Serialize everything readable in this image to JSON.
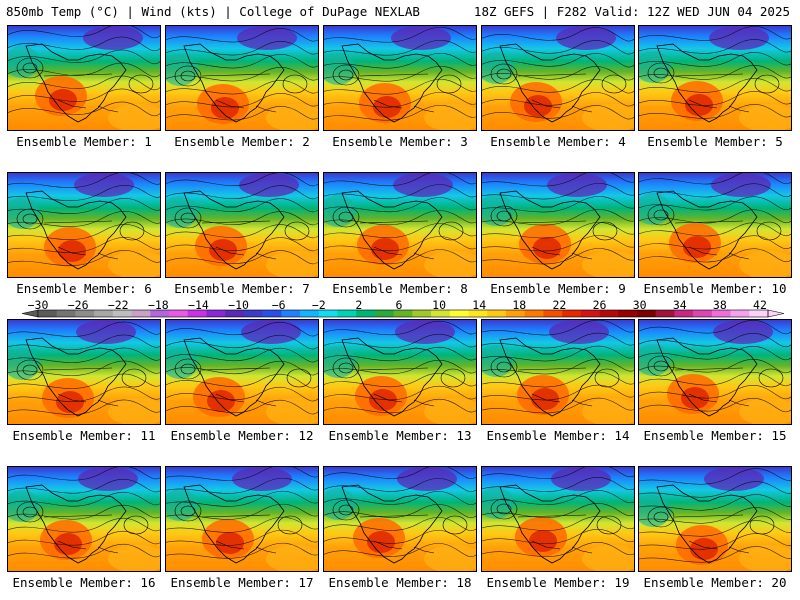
{
  "header": {
    "left": "850mb Temp (°C) | Wind (kts) | College of DuPage NEXLAB",
    "right": "18Z GEFS | F282 Valid: 12Z WED JUN 04 2025"
  },
  "colorbar": {
    "tick_labels": [
      "−30",
      "−26",
      "−22",
      "−18",
      "−14",
      "−10",
      "−6",
      "−2",
      "2",
      "6",
      "10",
      "14",
      "18",
      "22",
      "26",
      "30",
      "34",
      "38",
      "42"
    ],
    "colors": [
      "#5c5c5c",
      "#747474",
      "#8c8c8c",
      "#a6a6a6",
      "#bebebe",
      "#c8a0c8",
      "#b464dc",
      "#e65ae6",
      "#c832e6",
      "#8a28d8",
      "#5a2ab4",
      "#3c3cc8",
      "#2850e6",
      "#1e82ff",
      "#14b4ff",
      "#14dcf0",
      "#00d2b4",
      "#00b478",
      "#28aa3c",
      "#64b428",
      "#a0c828",
      "#d2e632",
      "#ffff32",
      "#ffe61e",
      "#ffc814",
      "#ffa00a",
      "#ff7800",
      "#f55000",
      "#e62800",
      "#d21414",
      "#b40a0a",
      "#960000",
      "#7a0000",
      "#a0143c",
      "#c82882",
      "#dc46b4",
      "#f06edc",
      "#f8a0f0",
      "#fcd2fa"
    ]
  },
  "members": [
    {
      "label": "Ensemble Member: 1"
    },
    {
      "label": "Ensemble Member: 2"
    },
    {
      "label": "Ensemble Member: 3"
    },
    {
      "label": "Ensemble Member: 4"
    },
    {
      "label": "Ensemble Member: 5"
    },
    {
      "label": "Ensemble Member: 6"
    },
    {
      "label": "Ensemble Member: 7"
    },
    {
      "label": "Ensemble Member: 8"
    },
    {
      "label": "Ensemble Member: 9"
    },
    {
      "label": "Ensemble Member: 10"
    },
    {
      "label": "Ensemble Member: 11"
    },
    {
      "label": "Ensemble Member: 12"
    },
    {
      "label": "Ensemble Member: 13"
    },
    {
      "label": "Ensemble Member: 14"
    },
    {
      "label": "Ensemble Member: 15"
    },
    {
      "label": "Ensemble Member: 16"
    },
    {
      "label": "Ensemble Member: 17"
    },
    {
      "label": "Ensemble Member: 18"
    },
    {
      "label": "Ensemble Member: 19"
    },
    {
      "label": "Ensemble Member: 20"
    }
  ]
}
